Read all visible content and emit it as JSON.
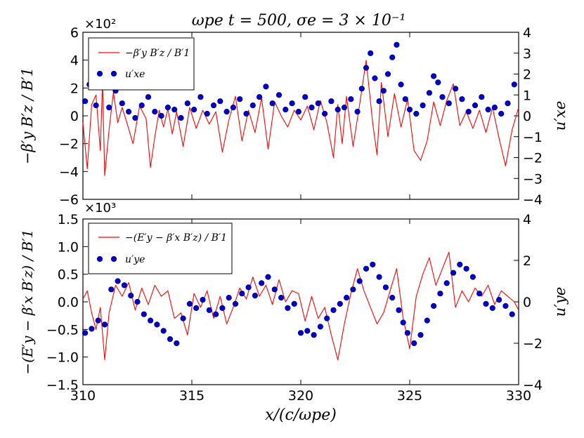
{
  "title": "ωpe t = 500, σe = 3 × 10⁻¹",
  "xlabel": "x/(c/ωpe)",
  "x_ticks": [
    "310",
    "315",
    "320",
    "325",
    "330"
  ],
  "colors": {
    "line": "#ff0000",
    "dots": "#0000cc",
    "dots_edge": "#000066"
  },
  "chart_data": [
    {
      "type": "line+scatter",
      "panel": "top",
      "left_multiplier": "×10²",
      "ylabel_left": "−β′y B′z / B′1",
      "ylabel_right": "u′xe",
      "ylim_left": [
        -6,
        6
      ],
      "ylim_right": [
        -4,
        4
      ],
      "yticks_left": [
        "−6",
        "−4",
        "−2",
        "0",
        "2",
        "4",
        "6"
      ],
      "yticks_right": [
        "−4",
        "−3",
        "−2",
        "−1",
        "0",
        "1",
        "2",
        "3",
        "4"
      ],
      "xlim": [
        310,
        330
      ],
      "legend": {
        "placement": "top-left",
        "line_label": "−β′y B′z / B′1",
        "dots_label": "u′xe"
      },
      "series": [
        {
          "name": "−β′y B′z / B′1",
          "axis": "left",
          "x": [
            310.0,
            310.2,
            310.4,
            310.6,
            310.8,
            310.9,
            311.0,
            311.2,
            311.4,
            311.6,
            311.8,
            312.0,
            312.3,
            312.6,
            312.9,
            313.1,
            313.3,
            313.5,
            313.7,
            313.9,
            314.1,
            314.3,
            314.6,
            314.9,
            315.2,
            315.5,
            315.8,
            316.1,
            316.4,
            316.7,
            317.0,
            317.3,
            317.6,
            317.9,
            318.2,
            318.5,
            318.8,
            319.1,
            319.4,
            319.7,
            320.0,
            320.3,
            320.6,
            320.9,
            321.2,
            321.5,
            321.7,
            321.9,
            322.1,
            322.4,
            322.7,
            323.0,
            323.3,
            323.5,
            323.7,
            324.0,
            324.3,
            324.6,
            324.9,
            325.2,
            325.5,
            325.8,
            326.1,
            326.4,
            326.7,
            327.0,
            327.3,
            327.6,
            327.9,
            328.2,
            328.5,
            328.8,
            329.1,
            329.4,
            329.7,
            330.0
          ],
          "y": [
            -0.5,
            -3.8,
            0.8,
            1.5,
            -2.5,
            2.5,
            -4.3,
            -1.0,
            1.7,
            -0.5,
            0.6,
            -0.4,
            -2.0,
            0.7,
            -0.2,
            -3.7,
            -1.5,
            0.4,
            -0.8,
            0.5,
            -1.3,
            0.3,
            -2.2,
            0.6,
            -0.9,
            0.4,
            -0.6,
            0.3,
            -2.6,
            -0.3,
            1.4,
            -1.8,
            0.4,
            -1.2,
            1.3,
            -2.4,
            1.0,
            0.0,
            -0.8,
            0.4,
            -0.3,
            0.7,
            -1.0,
            1.1,
            -0.5,
            -3.0,
            0.8,
            -2.0,
            1.4,
            -2.2,
            0.8,
            4.0,
            -0.5,
            -2.8,
            2.4,
            -1.5,
            1.6,
            -0.8,
            1.2,
            -2.5,
            -3.2,
            -1.8,
            1.0,
            -0.7,
            1.1,
            2.3,
            -0.7,
            0.3,
            -0.9,
            0.4,
            -1.2,
            0.6,
            -1.6,
            -3.6,
            -1.0,
            0.6
          ]
        },
        {
          "name": "u′xe",
          "axis": "right",
          "x": [
            310.1,
            310.3,
            310.6,
            310.9,
            311.2,
            311.5,
            311.8,
            312.1,
            312.4,
            312.7,
            313.0,
            313.3,
            313.6,
            313.9,
            314.2,
            314.5,
            314.8,
            315.1,
            315.4,
            315.7,
            316.0,
            316.3,
            316.6,
            316.9,
            317.2,
            317.5,
            317.8,
            318.1,
            318.4,
            318.7,
            319.0,
            319.3,
            319.6,
            319.9,
            320.2,
            320.5,
            320.8,
            321.1,
            321.4,
            321.7,
            322.0,
            322.3,
            322.6,
            322.8,
            323.0,
            323.2,
            323.4,
            323.6,
            323.8,
            324.0,
            324.2,
            324.4,
            324.6,
            324.8,
            325.0,
            325.3,
            325.6,
            325.9,
            326.1,
            326.3,
            326.5,
            326.8,
            327.1,
            327.4,
            327.7,
            328.0,
            328.3,
            328.6,
            328.9,
            329.2,
            329.5,
            329.8
          ],
          "y": [
            0.7,
            1.5,
            0.5,
            1.8,
            0.4,
            1.2,
            0.6,
            0.2,
            -0.1,
            0.5,
            0.9,
            0.2,
            0.0,
            0.4,
            0.3,
            -0.1,
            0.6,
            0.3,
            0.9,
            0.1,
            0.5,
            0.7,
            0.2,
            0.4,
            0.8,
            0.1,
            0.5,
            0.9,
            1.4,
            0.6,
            1.0,
            0.3,
            0.6,
            0.2,
            0.9,
            0.4,
            0.6,
            0.1,
            0.7,
            0.3,
            0.4,
            0.8,
            0.2,
            1.3,
            2.3,
            3.0,
            1.8,
            0.7,
            1.2,
            2.0,
            2.8,
            3.4,
            1.5,
            0.8,
            0.3,
            0.1,
            0.5,
            1.1,
            1.9,
            1.6,
            0.9,
            0.6,
            1.3,
            0.8,
            0.2,
            0.5,
            0.9,
            0.3,
            0.4,
            0.1,
            0.6,
            1.5
          ]
        }
      ]
    },
    {
      "type": "line+scatter",
      "panel": "bottom",
      "left_multiplier": "×10³",
      "ylabel_left": "−(E′y − β′x B′z) / B′1",
      "ylabel_right": "u′ye",
      "ylim_left": [
        -1.5,
        1.5
      ],
      "ylim_right": [
        -4,
        4
      ],
      "yticks_left": [
        "−1.5",
        "−1.0",
        "−0.5",
        "0.0",
        "0.5",
        "1.0",
        "1.5"
      ],
      "yticks_right": [
        "−4",
        "−2",
        "0",
        "2",
        "4"
      ],
      "xlim": [
        310,
        330
      ],
      "legend": {
        "placement": "top-left",
        "line_label": "−(E′y − β′x B′z) / B′1",
        "dots_label": "u′ye"
      },
      "series": [
        {
          "name": "−(E′y − β′x B′z) / B′1",
          "axis": "left",
          "x": [
            310.0,
            310.2,
            310.4,
            310.6,
            310.8,
            311.0,
            311.2,
            311.5,
            311.8,
            312.1,
            312.4,
            312.7,
            313.0,
            313.3,
            313.6,
            313.9,
            314.2,
            314.5,
            314.8,
            315.1,
            315.4,
            315.7,
            316.0,
            316.3,
            316.6,
            316.9,
            317.2,
            317.5,
            317.8,
            318.1,
            318.4,
            318.7,
            319.0,
            319.3,
            319.6,
            319.9,
            320.2,
            320.5,
            320.8,
            321.1,
            321.4,
            321.7,
            322.0,
            322.3,
            322.6,
            322.9,
            323.2,
            323.5,
            323.8,
            324.1,
            324.4,
            324.7,
            325.0,
            325.3,
            325.6,
            325.9,
            326.2,
            326.5,
            326.8,
            327.1,
            327.4,
            327.7,
            328.0,
            328.3,
            328.6,
            328.9,
            329.2,
            329.5,
            329.8,
            330.0
          ],
          "y": [
            0.05,
            0.2,
            -0.2,
            -0.5,
            -0.1,
            -1.05,
            -0.2,
            0.3,
            0.1,
            0.35,
            -0.15,
            0.25,
            -0.05,
            0.3,
            0.1,
            0.2,
            -0.3,
            -0.2,
            -0.6,
            0.15,
            -0.1,
            0.2,
            -0.3,
            0.1,
            -0.4,
            -0.1,
            0.25,
            0.05,
            0.45,
            0.1,
            0.3,
            -0.05,
            0.4,
            0.0,
            0.2,
            0.15,
            -0.35,
            0.1,
            -0.3,
            -0.1,
            -0.6,
            -1.05,
            -0.4,
            0.15,
            0.6,
            0.2,
            -0.1,
            -0.4,
            -0.2,
            0.2,
            0.6,
            -0.3,
            -0.85,
            0.1,
            0.5,
            0.8,
            0.3,
            0.6,
            0.9,
            -0.1,
            0.2,
            0.0,
            0.25,
            0.1,
            0.3,
            -0.05,
            0.2,
            0.1,
            0.0,
            -0.15
          ]
        },
        {
          "name": "u′ye",
          "axis": "right",
          "x": [
            310.1,
            310.4,
            310.7,
            311.0,
            311.3,
            311.6,
            311.9,
            312.2,
            312.5,
            312.8,
            313.1,
            313.4,
            313.7,
            314.0,
            314.3,
            314.6,
            314.9,
            315.2,
            315.5,
            315.8,
            316.1,
            316.4,
            316.7,
            317.0,
            317.3,
            317.6,
            317.9,
            318.2,
            318.5,
            318.8,
            319.1,
            319.4,
            319.7,
            320.0,
            320.3,
            320.6,
            320.9,
            321.2,
            321.5,
            321.8,
            322.1,
            322.4,
            322.7,
            323.0,
            323.3,
            323.6,
            323.9,
            324.2,
            324.5,
            324.7,
            324.9,
            325.2,
            325.5,
            325.8,
            326.1,
            326.4,
            326.7,
            327.0,
            327.3,
            327.6,
            327.9,
            328.2,
            328.5,
            328.8,
            329.1,
            329.4,
            329.7
          ],
          "y": [
            -1.5,
            -1.3,
            -0.9,
            -1.1,
            0.6,
            1.0,
            0.8,
            0.3,
            0.0,
            -0.6,
            -0.9,
            -1.1,
            -1.4,
            -1.8,
            -2.0,
            -0.8,
            -0.1,
            -0.3,
            0.1,
            -0.4,
            -0.6,
            -0.3,
            0.2,
            -0.1,
            0.4,
            0.7,
            0.3,
            0.9,
            1.2,
            0.6,
            0.2,
            -0.3,
            -0.1,
            -1.5,
            -1.4,
            -1.6,
            -1.2,
            -0.8,
            -0.4,
            -0.1,
            0.2,
            0.6,
            1.0,
            1.6,
            1.8,
            1.2,
            0.7,
            0.2,
            -0.4,
            -1.0,
            -1.5,
            -2.0,
            -1.6,
            -0.9,
            -0.2,
            0.4,
            0.9,
            1.4,
            1.8,
            1.6,
            1.2,
            0.4,
            -0.1,
            -0.3,
            0.1,
            -0.2,
            -0.6
          ]
        }
      ]
    }
  ]
}
